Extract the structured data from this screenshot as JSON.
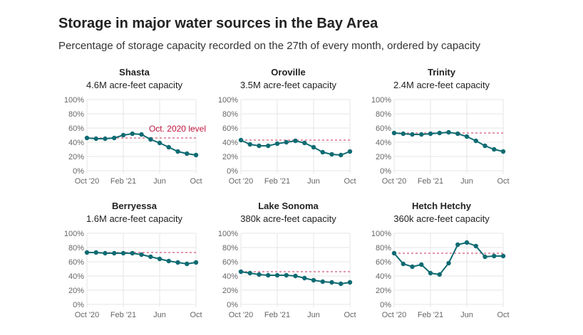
{
  "title": "Storage in major water sources in the Bay Area",
  "subtitle": "Percentage of storage capacity recorded on the 27th of every month, ordered by capacity",
  "chart_data": {
    "type": "line",
    "x": [
      "Oct 2020",
      "Nov 2020",
      "Dec 2020",
      "Jan 2021",
      "Feb 2021",
      "Mar 2021",
      "Apr 2021",
      "May 2021",
      "Jun 2021",
      "Jul 2021",
      "Aug 2021",
      "Sep 2021",
      "Oct 2021"
    ],
    "x_tick_labels": [
      "Oct '20",
      "Feb '21",
      "Jun",
      "Oct"
    ],
    "y_tick_labels": [
      "0%",
      "20%",
      "40%",
      "60%",
      "80%",
      "100%"
    ],
    "ylim": [
      0,
      100
    ],
    "grid": true,
    "reference_annotation": "Oct. 2020 level",
    "colors": {
      "line": "#0f6b72",
      "reference": "#d9738c",
      "annotation": "#c2163f"
    },
    "panels": [
      {
        "name": "Shasta",
        "capacity": "4.6M acre-feet capacity",
        "values": [
          46,
          45,
          45,
          46,
          50,
          52,
          51,
          44,
          39,
          33,
          27,
          24,
          22
        ]
      },
      {
        "name": "Oroville",
        "capacity": "3.5M acre-feet capacity",
        "values": [
          43,
          37,
          35,
          35,
          38,
          40,
          42,
          39,
          33,
          26,
          23,
          22,
          27
        ]
      },
      {
        "name": "Trinity",
        "capacity": "2.4M acre-feet capacity",
        "values": [
          53,
          52,
          51,
          51,
          52,
          53,
          54,
          52,
          48,
          42,
          35,
          30,
          27
        ]
      },
      {
        "name": "Berryessa",
        "capacity": "1.6M acre-feet capacity",
        "values": [
          73,
          73,
          72,
          72,
          72,
          72,
          70,
          67,
          64,
          61,
          59,
          57,
          59
        ]
      },
      {
        "name": "Lake Sonoma",
        "capacity": "380k acre-feet capacity",
        "values": [
          46,
          44,
          42,
          41,
          41,
          41,
          40,
          37,
          34,
          32,
          31,
          29,
          31
        ]
      },
      {
        "name": "Hetch Hetchy",
        "capacity": "360k acre-feet capacity",
        "values": [
          72,
          57,
          53,
          56,
          44,
          42,
          58,
          84,
          87,
          82,
          67,
          68,
          68
        ]
      }
    ]
  }
}
